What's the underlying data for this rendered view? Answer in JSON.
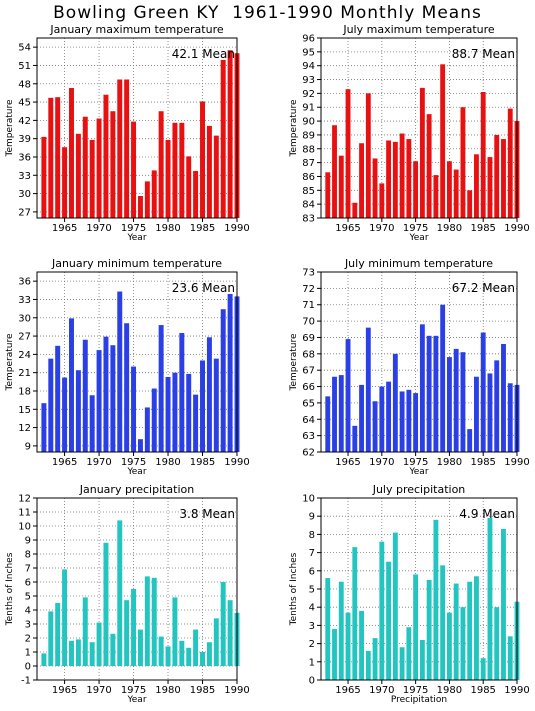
{
  "title": "Bowling Green KY  1961-1990 Monthly Means",
  "colors": {
    "red": "#e81010",
    "blue": "#2a3fe6",
    "teal": "#22c5c0",
    "grid": "#777777"
  },
  "chart_data": [
    {
      "type": "bar",
      "title": "January maximum temperature",
      "annotation": "42.1 Mean",
      "xlabel": "Year",
      "ylabel": "Temperature",
      "color": "red",
      "grid": true,
      "xlim": [
        1961,
        1990
      ],
      "xticks": [
        1965,
        1970,
        1975,
        1980,
        1985,
        1990
      ],
      "ylim": [
        26,
        55.5
      ],
      "yticks": [
        27,
        30,
        33,
        36,
        39,
        42,
        45,
        48,
        51,
        54
      ],
      "x": [
        1962,
        1963,
        1964,
        1965,
        1966,
        1967,
        1968,
        1969,
        1970,
        1971,
        1972,
        1973,
        1974,
        1975,
        1976,
        1977,
        1978,
        1979,
        1980,
        1981,
        1982,
        1983,
        1984,
        1985,
        1986,
        1987,
        1988,
        1989,
        1990
      ],
      "values": [
        39.3,
        45.7,
        45.8,
        37.6,
        47.3,
        39.8,
        42.6,
        38.8,
        42.3,
        46.2,
        43.5,
        48.7,
        48.7,
        41.8,
        29.6,
        32.0,
        33.8,
        43.5,
        38.8,
        41.6,
        41.6,
        36.1,
        33.7,
        45.1,
        41.1,
        39.5,
        51.9,
        53.5,
        53.0
      ]
    },
    {
      "type": "bar",
      "title": "July maximum temperature",
      "annotation": "88.7 Mean",
      "xlabel": "Year",
      "ylabel": "Temperature",
      "color": "red",
      "grid": true,
      "xlim": [
        1961,
        1990
      ],
      "xticks": [
        1965,
        1970,
        1975,
        1980,
        1985,
        1990
      ],
      "ylim": [
        83,
        96
      ],
      "yticks": [
        83,
        84,
        85,
        86,
        87,
        88,
        89,
        90,
        91,
        92,
        93,
        94,
        95,
        96
      ],
      "x": [
        1962,
        1963,
        1964,
        1965,
        1966,
        1967,
        1968,
        1969,
        1970,
        1971,
        1972,
        1973,
        1974,
        1975,
        1976,
        1977,
        1978,
        1979,
        1980,
        1981,
        1982,
        1983,
        1984,
        1985,
        1986,
        1987,
        1988,
        1989,
        1990
      ],
      "values": [
        86.3,
        89.7,
        87.5,
        92.3,
        84.1,
        88.4,
        92.0,
        87.3,
        85.5,
        88.6,
        88.5,
        89.1,
        88.7,
        87.1,
        92.4,
        90.5,
        86.1,
        94.1,
        87.1,
        86.5,
        91.0,
        85.0,
        87.6,
        92.1,
        87.4,
        89.0,
        88.7,
        90.9,
        90.0
      ]
    },
    {
      "type": "bar",
      "title": "January minimum temperature",
      "annotation": "23.6 Mean",
      "xlabel": "Year",
      "ylabel": "Temperature",
      "color": "blue",
      "grid": true,
      "xlim": [
        1961,
        1990
      ],
      "xticks": [
        1965,
        1970,
        1975,
        1980,
        1985,
        1990
      ],
      "ylim": [
        8,
        37.5
      ],
      "yticks": [
        9,
        12,
        15,
        18,
        21,
        24,
        27,
        30,
        33,
        36
      ],
      "x": [
        1962,
        1963,
        1964,
        1965,
        1966,
        1967,
        1968,
        1969,
        1970,
        1971,
        1972,
        1973,
        1974,
        1975,
        1976,
        1977,
        1978,
        1979,
        1980,
        1981,
        1982,
        1983,
        1984,
        1985,
        1986,
        1987,
        1988,
        1989,
        1990
      ],
      "values": [
        16.0,
        23.3,
        25.4,
        20.2,
        29.9,
        21.4,
        26.4,
        17.3,
        24.7,
        26.9,
        25.5,
        34.3,
        29.1,
        22.0,
        10.1,
        15.3,
        18.4,
        28.8,
        20.3,
        21.0,
        27.5,
        20.8,
        17.4,
        23.0,
        26.8,
        23.3,
        31.4,
        33.9,
        33.5
      ]
    },
    {
      "type": "bar",
      "title": "July minimum temperature",
      "annotation": "67.2 Mean",
      "xlabel": "Year",
      "ylabel": "Temperature",
      "color": "blue",
      "grid": true,
      "xlim": [
        1961,
        1990
      ],
      "xticks": [
        1965,
        1970,
        1975,
        1980,
        1985,
        1990
      ],
      "ylim": [
        62,
        73
      ],
      "yticks": [
        62,
        63,
        64,
        65,
        66,
        67,
        68,
        69,
        70,
        71,
        72,
        73
      ],
      "x": [
        1962,
        1963,
        1964,
        1965,
        1966,
        1967,
        1968,
        1969,
        1970,
        1971,
        1972,
        1973,
        1974,
        1975,
        1976,
        1977,
        1978,
        1979,
        1980,
        1981,
        1982,
        1983,
        1984,
        1985,
        1986,
        1987,
        1988,
        1989,
        1990
      ],
      "values": [
        65.4,
        66.6,
        66.7,
        68.9,
        63.6,
        66.1,
        69.6,
        65.1,
        66.0,
        66.3,
        68.0,
        65.7,
        65.8,
        65.6,
        69.8,
        69.1,
        69.1,
        71.0,
        67.8,
        68.3,
        68.1,
        63.4,
        66.6,
        69.3,
        66.8,
        67.6,
        68.6,
        66.2,
        66.1
      ]
    },
    {
      "type": "bar",
      "title": "January precipitation",
      "annotation": "3.8 Mean",
      "xlabel": "Year",
      "ylabel": "Tenths of Inches",
      "color": "teal",
      "grid": true,
      "xlim": [
        1961,
        1990
      ],
      "xticks": [
        1965,
        1970,
        1975,
        1980,
        1985,
        1990
      ],
      "ylim": [
        -1,
        12
      ],
      "yticks": [
        -1,
        0,
        1,
        2,
        3,
        4,
        5,
        6,
        7,
        8,
        9,
        10,
        11,
        12
      ],
      "x": [
        1962,
        1963,
        1964,
        1965,
        1966,
        1967,
        1968,
        1969,
        1970,
        1971,
        1972,
        1973,
        1974,
        1975,
        1976,
        1977,
        1978,
        1979,
        1980,
        1981,
        1982,
        1983,
        1984,
        1985,
        1986,
        1987,
        1988,
        1989,
        1990
      ],
      "values": [
        0.9,
        3.9,
        4.5,
        6.9,
        1.8,
        1.9,
        4.9,
        1.7,
        3.1,
        8.8,
        2.3,
        10.4,
        4.7,
        5.5,
        2.6,
        6.4,
        6.3,
        2.1,
        1.4,
        4.9,
        1.8,
        1.3,
        2.6,
        1.0,
        1.7,
        3.4,
        6.0,
        4.7,
        3.8
      ]
    },
    {
      "type": "bar",
      "title": "July precipitation",
      "annotation": "4.9 Mean",
      "xlabel": "Precipitation",
      "ylabel": "Tenths of Inches",
      "color": "teal",
      "grid": true,
      "xlim": [
        1961,
        1990
      ],
      "xticks": [
        1965,
        1970,
        1975,
        1980,
        1985,
        1990
      ],
      "ylim": [
        0,
        10
      ],
      "yticks": [
        0,
        1,
        2,
        3,
        4,
        5,
        6,
        7,
        8,
        9,
        10
      ],
      "x": [
        1962,
        1963,
        1964,
        1965,
        1966,
        1967,
        1968,
        1969,
        1970,
        1971,
        1972,
        1973,
        1974,
        1975,
        1976,
        1977,
        1978,
        1979,
        1980,
        1981,
        1982,
        1983,
        1984,
        1985,
        1986,
        1987,
        1988,
        1989,
        1990
      ],
      "values": [
        5.6,
        2.8,
        5.4,
        3.7,
        7.3,
        3.8,
        1.6,
        2.3,
        7.6,
        6.5,
        8.1,
        1.8,
        2.9,
        5.8,
        2.2,
        5.5,
        8.8,
        6.3,
        3.7,
        5.3,
        4.0,
        5.4,
        5.7,
        1.2,
        8.9,
        4.0,
        8.3,
        2.4,
        4.3
      ]
    }
  ]
}
